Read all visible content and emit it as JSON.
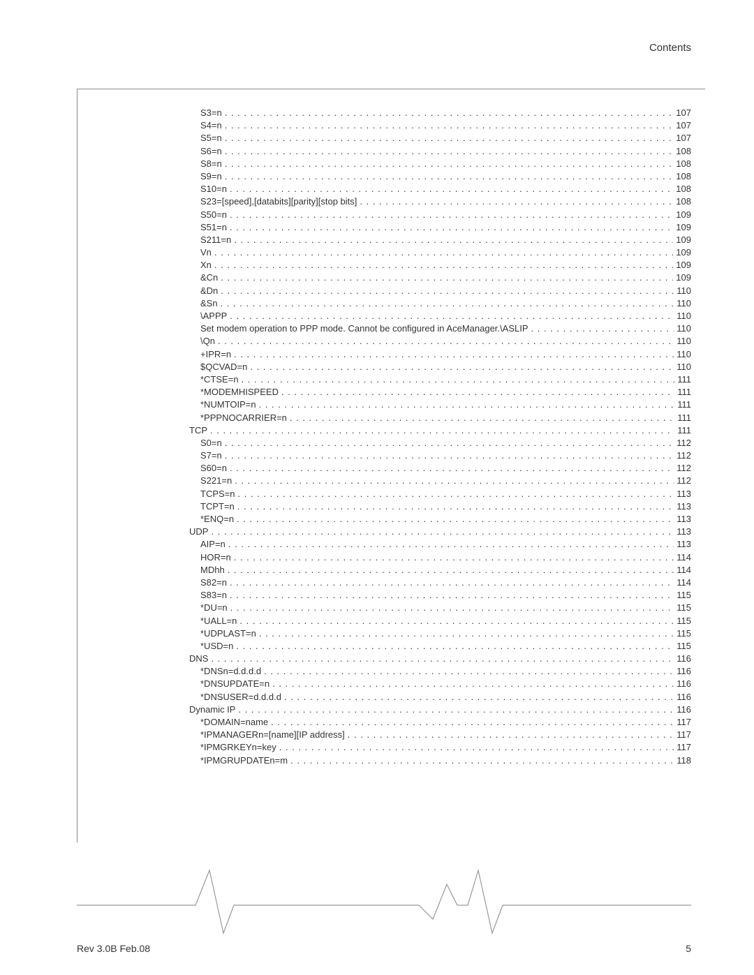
{
  "header": {
    "title": "Contents"
  },
  "footer": {
    "revision": "Rev 3.0B  Feb.08",
    "page_number": "5"
  },
  "toc": [
    {
      "level": 2,
      "label": "S3=n",
      "page": "107"
    },
    {
      "level": 2,
      "label": "S4=n",
      "page": "107"
    },
    {
      "level": 2,
      "label": "S5=n",
      "page": "107"
    },
    {
      "level": 2,
      "label": "S6=n",
      "page": "108"
    },
    {
      "level": 2,
      "label": "S8=n",
      "page": "108"
    },
    {
      "level": 2,
      "label": "S9=n",
      "page": "108"
    },
    {
      "level": 2,
      "label": "S10=n",
      "page": "108"
    },
    {
      "level": 2,
      "label": "S23=[speed],[databits][parity][stop bits]",
      "page": "108"
    },
    {
      "level": 2,
      "label": "S50=n",
      "page": "109"
    },
    {
      "level": 2,
      "label": "S51=n",
      "page": "109"
    },
    {
      "level": 2,
      "label": "S211=n",
      "page": "109"
    },
    {
      "level": 2,
      "label": "Vn",
      "page": "109"
    },
    {
      "level": 2,
      "label": "Xn",
      "page": "109"
    },
    {
      "level": 2,
      "label": "&Cn",
      "page": "109"
    },
    {
      "level": 2,
      "label": "&Dn",
      "page": "110"
    },
    {
      "level": 2,
      "label": "&Sn",
      "page": "110"
    },
    {
      "level": 2,
      "label": "\\APPP",
      "page": "110"
    },
    {
      "level": 2,
      "label": "Set modem operation to PPP mode. Cannot be configured in AceManager.\\ASLIP",
      "page": "110"
    },
    {
      "level": 2,
      "label": "\\Qn",
      "page": "110"
    },
    {
      "level": 2,
      "label": "+IPR=n",
      "page": "110"
    },
    {
      "level": 2,
      "label": "$QCVAD=n",
      "page": "110"
    },
    {
      "level": 2,
      "label": "*CTSE=n",
      "page": "111"
    },
    {
      "level": 2,
      "label": "*MODEMHISPEED",
      "page": "111"
    },
    {
      "level": 2,
      "label": "*NUMTOIP=n",
      "page": "111"
    },
    {
      "level": 2,
      "label": "*PPPNOCARRIER=n",
      "page": "111"
    },
    {
      "level": 1,
      "label": "TCP",
      "page": "111"
    },
    {
      "level": 2,
      "label": "S0=n",
      "page": "112"
    },
    {
      "level": 2,
      "label": "S7=n",
      "page": "112"
    },
    {
      "level": 2,
      "label": "S60=n",
      "page": "112"
    },
    {
      "level": 2,
      "label": "S221=n",
      "page": "112"
    },
    {
      "level": 2,
      "label": "TCPS=n",
      "page": "113"
    },
    {
      "level": 2,
      "label": "TCPT=n",
      "page": "113"
    },
    {
      "level": 2,
      "label": "*ENQ=n",
      "page": "113"
    },
    {
      "level": 1,
      "label": "UDP",
      "page": "113"
    },
    {
      "level": 2,
      "label": "AIP=n",
      "page": "113"
    },
    {
      "level": 2,
      "label": "HOR=n",
      "page": "114"
    },
    {
      "level": 2,
      "label": "MDhh",
      "page": "114"
    },
    {
      "level": 2,
      "label": "S82=n",
      "page": "114"
    },
    {
      "level": 2,
      "label": "S83=n",
      "page": "115"
    },
    {
      "level": 2,
      "label": "*DU=n",
      "page": "115"
    },
    {
      "level": 2,
      "label": "*UALL=n",
      "page": "115"
    },
    {
      "level": 2,
      "label": "*UDPLAST=n",
      "page": "115"
    },
    {
      "level": 2,
      "label": "*USD=n",
      "page": "115"
    },
    {
      "level": 1,
      "label": "DNS",
      "page": "116"
    },
    {
      "level": 2,
      "label": "*DNSn=d.d.d.d",
      "page": "116"
    },
    {
      "level": 2,
      "label": "*DNSUPDATE=n",
      "page": "116"
    },
    {
      "level": 2,
      "label": "*DNSUSER=d.d.d.d",
      "page": "116"
    },
    {
      "level": 1,
      "label": "Dynamic IP",
      "page": "116"
    },
    {
      "level": 2,
      "label": "*DOMAIN=name",
      "page": "117"
    },
    {
      "level": 2,
      "label": "*IPMANAGERn=[name][IP address]",
      "page": "117"
    },
    {
      "level": 2,
      "label": "*IPMGRKEYn=key",
      "page": "117"
    },
    {
      "level": 2,
      "label": "*IPMGRUPDATEn=m",
      "page": "118"
    }
  ],
  "wave": {
    "stroke_color": "#999999",
    "stroke_width": 1.2
  }
}
